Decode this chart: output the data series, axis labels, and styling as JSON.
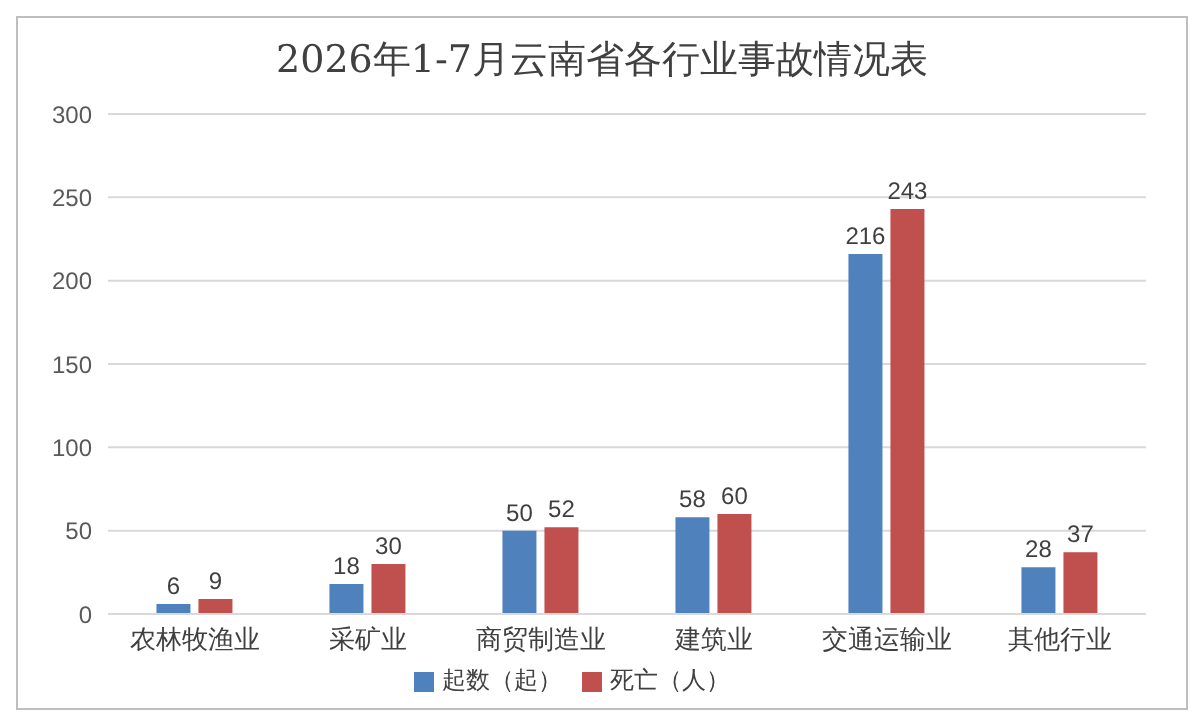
{
  "chart_data": {
    "type": "bar",
    "title": "2026年1-7月云南省各行业事故情况表",
    "categories": [
      "农林牧渔业",
      "采矿业",
      "商贸制造业",
      "建筑业",
      "交通运输业",
      "其他行业"
    ],
    "series": [
      {
        "name": "起数（起）",
        "color": "#4f81bd",
        "values": [
          6,
          18,
          50,
          58,
          216,
          28
        ]
      },
      {
        "name": "死亡（人）",
        "color": "#c0504d",
        "values": [
          9,
          30,
          52,
          60,
          243,
          37
        ]
      }
    ],
    "ylim": [
      0,
      300
    ],
    "yticks": [
      0,
      50,
      100,
      150,
      200,
      250,
      300
    ],
    "grid": "y",
    "legend": "bottom",
    "data_labels": true
  }
}
